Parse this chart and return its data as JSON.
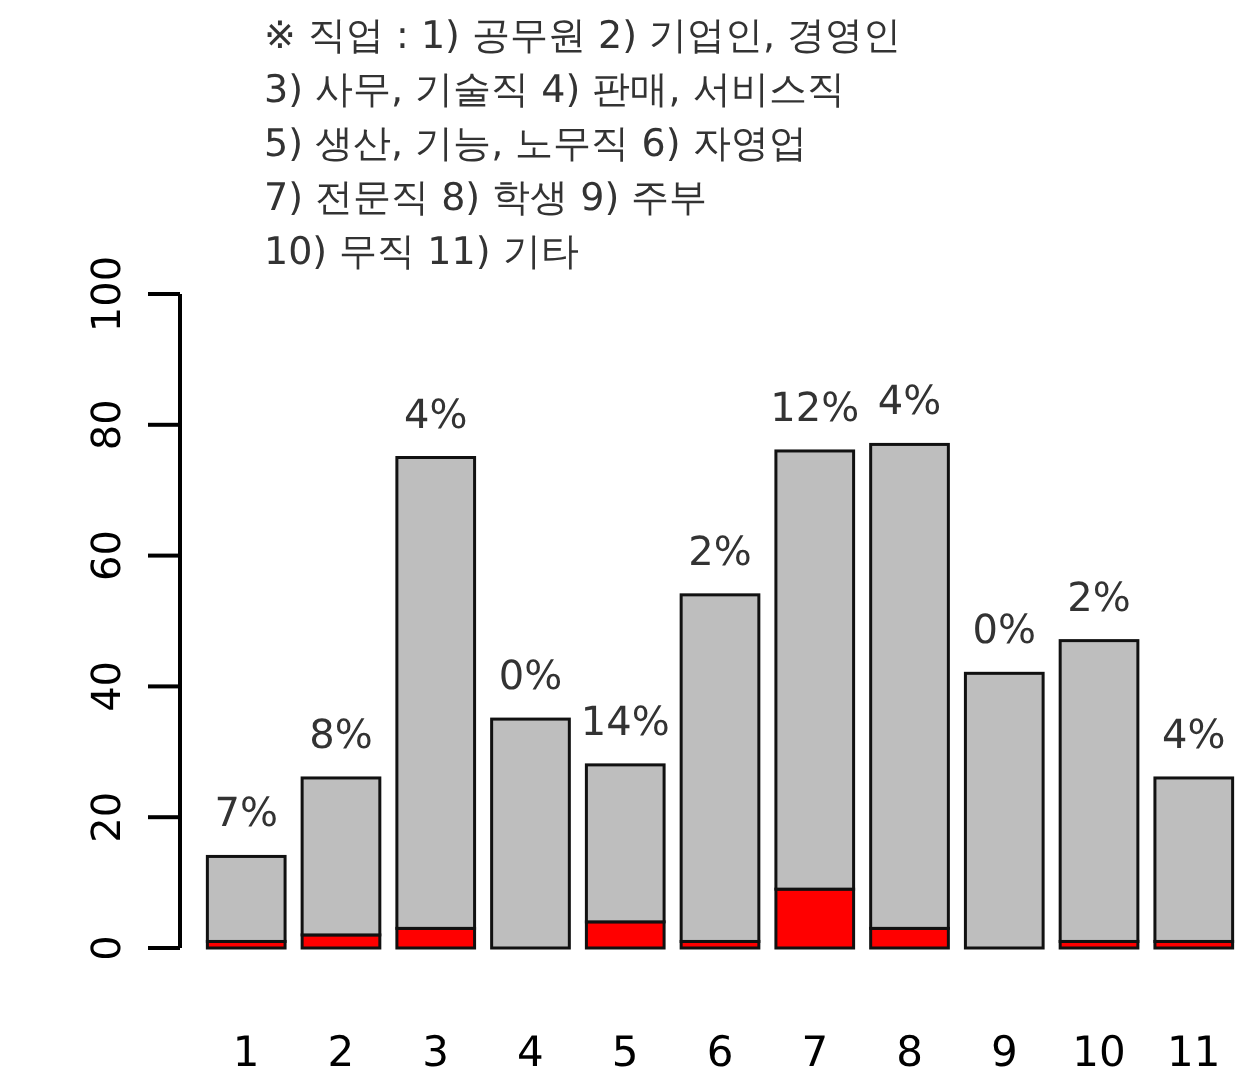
{
  "chart_data": {
    "type": "bar",
    "title": "※ 직업 : 1) 공무원 2) 기업인, 경영인\n3) 사무, 기술직 4) 판매, 서비스직\n5) 생산, 기능, 노무직 6) 자영업\n7) 전문직 8) 학생 9) 주부\n10) 무직 11) 기타",
    "categories": [
      "1",
      "2",
      "3",
      "4",
      "5",
      "6",
      "7",
      "8",
      "9",
      "10",
      "11"
    ],
    "stacked": true,
    "series": [
      {
        "color": "#ff0000",
        "values": [
          1,
          2,
          3,
          0,
          4,
          1,
          9,
          3,
          0,
          1,
          1
        ]
      },
      {
        "color": "#bebebe",
        "values": [
          13,
          24,
          72,
          35,
          24,
          53,
          67,
          74,
          42,
          46,
          25
        ]
      }
    ],
    "ylim": [
      0,
      100
    ],
    "yticks": [
      0,
      20,
      40,
      60,
      80,
      100
    ],
    "annotations": [
      {
        "text": "7%",
        "x": "1",
        "y": 14
      },
      {
        "text": "8%",
        "x": "2",
        "y": 26
      },
      {
        "text": "4%",
        "x": "3",
        "y": 75
      },
      {
        "text": "0%",
        "x": "4",
        "y": 35
      },
      {
        "text": "14%",
        "x": "5",
        "y": 28
      },
      {
        "text": "2%",
        "x": "6",
        "y": 54
      },
      {
        "text": "12%",
        "x": "7",
        "y": 76
      },
      {
        "text": "4%",
        "x": "8",
        "y": 77
      },
      {
        "text": "0%",
        "x": "9",
        "y": 42
      },
      {
        "text": "2%",
        "x": "10",
        "y": 47
      },
      {
        "text": "4%",
        "x": "11",
        "y": 26
      }
    ]
  }
}
